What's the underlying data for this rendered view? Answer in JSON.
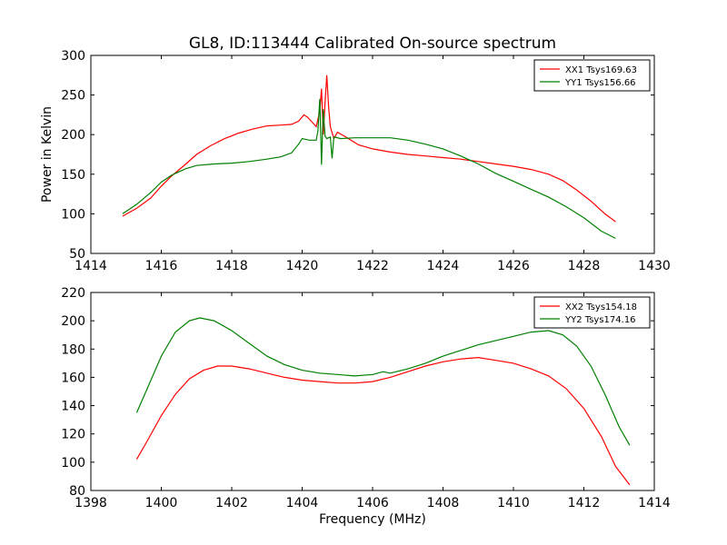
{
  "figure": {
    "title": "GL8, ID:113444 Calibrated On-source spectrum",
    "xlabel": "Frequency (MHz)",
    "ylabel": "Power in Kelvin"
  },
  "chart_data": [
    {
      "type": "line",
      "title": "GL8, ID:113444 Calibrated On-source spectrum",
      "xlabel": "",
      "ylabel": "Power in Kelvin",
      "xlim": [
        1414,
        1430
      ],
      "ylim": [
        50,
        300
      ],
      "xticks": [
        1414,
        1416,
        1418,
        1420,
        1422,
        1424,
        1426,
        1428,
        1430
      ],
      "yticks": [
        50,
        100,
        150,
        200,
        250,
        300
      ],
      "grid": false,
      "legend_position": "top-right",
      "series": [
        {
          "name": "XX1 Tsys169.63",
          "color": "#ff0000",
          "points": [
            [
              1414.9,
              97
            ],
            [
              1415.3,
              107
            ],
            [
              1415.7,
              120
            ],
            [
              1416.0,
              135
            ],
            [
              1416.3,
              148
            ],
            [
              1416.7,
              163
            ],
            [
              1417.0,
              175
            ],
            [
              1417.4,
              186
            ],
            [
              1417.8,
              195
            ],
            [
              1418.2,
              202
            ],
            [
              1418.6,
              207
            ],
            [
              1419.0,
              211
            ],
            [
              1419.4,
              212
            ],
            [
              1419.7,
              213
            ],
            [
              1419.9,
              217
            ],
            [
              1420.05,
              225
            ],
            [
              1420.15,
              222
            ],
            [
              1420.3,
              215
            ],
            [
              1420.4,
              210
            ],
            [
              1420.5,
              230
            ],
            [
              1420.55,
              258
            ],
            [
              1420.6,
              200
            ],
            [
              1420.65,
              240
            ],
            [
              1420.7,
              275
            ],
            [
              1420.75,
              235
            ],
            [
              1420.8,
              210
            ],
            [
              1420.9,
              195
            ],
            [
              1421.0,
              203
            ],
            [
              1421.2,
              198
            ],
            [
              1421.6,
              187
            ],
            [
              1422.0,
              182
            ],
            [
              1422.5,
              178
            ],
            [
              1423.0,
              175
            ],
            [
              1423.5,
              173
            ],
            [
              1424.0,
              171
            ],
            [
              1424.5,
              169
            ],
            [
              1425.0,
              166
            ],
            [
              1425.5,
              163
            ],
            [
              1426.0,
              160
            ],
            [
              1426.5,
              156
            ],
            [
              1427.0,
              150
            ],
            [
              1427.4,
              142
            ],
            [
              1427.8,
              130
            ],
            [
              1428.2,
              116
            ],
            [
              1428.6,
              100
            ],
            [
              1428.9,
              90
            ]
          ]
        },
        {
          "name": "YY1 Tsys156.66",
          "color": "#008000",
          "points": [
            [
              1414.9,
              100
            ],
            [
              1415.3,
              112
            ],
            [
              1415.7,
              127
            ],
            [
              1416.0,
              140
            ],
            [
              1416.3,
              149
            ],
            [
              1416.7,
              157
            ],
            [
              1417.0,
              161
            ],
            [
              1417.5,
              163
            ],
            [
              1418.0,
              164
            ],
            [
              1418.5,
              166
            ],
            [
              1419.0,
              169
            ],
            [
              1419.4,
              172
            ],
            [
              1419.7,
              177
            ],
            [
              1419.9,
              188
            ],
            [
              1420.0,
              195
            ],
            [
              1420.2,
              193
            ],
            [
              1420.4,
              193
            ],
            [
              1420.45,
              205
            ],
            [
              1420.5,
              245
            ],
            [
              1420.55,
              162
            ],
            [
              1420.6,
              232
            ],
            [
              1420.65,
              198
            ],
            [
              1420.7,
              195
            ],
            [
              1420.8,
              197
            ],
            [
              1420.85,
              170
            ],
            [
              1420.9,
              197
            ],
            [
              1421.1,
              195
            ],
            [
              1421.5,
              196
            ],
            [
              1422.0,
              196
            ],
            [
              1422.5,
              196
            ],
            [
              1423.0,
              193
            ],
            [
              1423.5,
              188
            ],
            [
              1424.0,
              182
            ],
            [
              1424.5,
              173
            ],
            [
              1425.0,
              163
            ],
            [
              1425.5,
              151
            ],
            [
              1426.0,
              141
            ],
            [
              1426.5,
              131
            ],
            [
              1427.0,
              121
            ],
            [
              1427.5,
              109
            ],
            [
              1428.0,
              95
            ],
            [
              1428.5,
              78
            ],
            [
              1428.9,
              69
            ]
          ]
        }
      ]
    },
    {
      "type": "line",
      "title": "",
      "xlabel": "Frequency (MHz)",
      "ylabel": "",
      "xlim": [
        1398,
        1414
      ],
      "ylim": [
        80,
        220
      ],
      "xticks": [
        1398,
        1400,
        1402,
        1404,
        1406,
        1408,
        1410,
        1412,
        1414
      ],
      "yticks": [
        80,
        100,
        120,
        140,
        160,
        180,
        200,
        220
      ],
      "grid": false,
      "legend_position": "top-right",
      "series": [
        {
          "name": "XX2 Tsys154.18",
          "color": "#ff0000",
          "points": [
            [
              1399.3,
              102
            ],
            [
              1399.6,
              115
            ],
            [
              1400.0,
              133
            ],
            [
              1400.4,
              148
            ],
            [
              1400.8,
              159
            ],
            [
              1401.2,
              165
            ],
            [
              1401.6,
              168
            ],
            [
              1402.0,
              168
            ],
            [
              1402.5,
              166
            ],
            [
              1403.0,
              163
            ],
            [
              1403.5,
              160
            ],
            [
              1404.0,
              158
            ],
            [
              1404.5,
              157
            ],
            [
              1405.0,
              156
            ],
            [
              1405.5,
              156
            ],
            [
              1406.0,
              157
            ],
            [
              1406.5,
              160
            ],
            [
              1407.0,
              164
            ],
            [
              1407.5,
              168
            ],
            [
              1408.0,
              171
            ],
            [
              1408.5,
              173
            ],
            [
              1409.0,
              174
            ],
            [
              1409.5,
              172
            ],
            [
              1410.0,
              170
            ],
            [
              1410.5,
              166
            ],
            [
              1411.0,
              161
            ],
            [
              1411.5,
              152
            ],
            [
              1412.0,
              138
            ],
            [
              1412.5,
              118
            ],
            [
              1412.9,
              97
            ],
            [
              1413.3,
              84
            ]
          ]
        },
        {
          "name": "YY2 Tsys174.16",
          "color": "#008000",
          "points": [
            [
              1399.3,
              135
            ],
            [
              1399.6,
              152
            ],
            [
              1400.0,
              175
            ],
            [
              1400.4,
              192
            ],
            [
              1400.8,
              200
            ],
            [
              1401.1,
              202
            ],
            [
              1401.5,
              200
            ],
            [
              1402.0,
              193
            ],
            [
              1402.5,
              184
            ],
            [
              1403.0,
              175
            ],
            [
              1403.5,
              169
            ],
            [
              1404.0,
              165
            ],
            [
              1404.5,
              163
            ],
            [
              1405.0,
              162
            ],
            [
              1405.5,
              161
            ],
            [
              1406.0,
              162
            ],
            [
              1406.3,
              164
            ],
            [
              1406.5,
              163
            ],
            [
              1407.0,
              166
            ],
            [
              1407.5,
              170
            ],
            [
              1408.0,
              175
            ],
            [
              1408.5,
              179
            ],
            [
              1409.0,
              183
            ],
            [
              1409.5,
              186
            ],
            [
              1410.0,
              189
            ],
            [
              1410.5,
              192
            ],
            [
              1411.0,
              193
            ],
            [
              1411.4,
              190
            ],
            [
              1411.8,
              182
            ],
            [
              1412.2,
              168
            ],
            [
              1412.6,
              148
            ],
            [
              1413.0,
              125
            ],
            [
              1413.3,
              112
            ]
          ]
        }
      ]
    }
  ]
}
